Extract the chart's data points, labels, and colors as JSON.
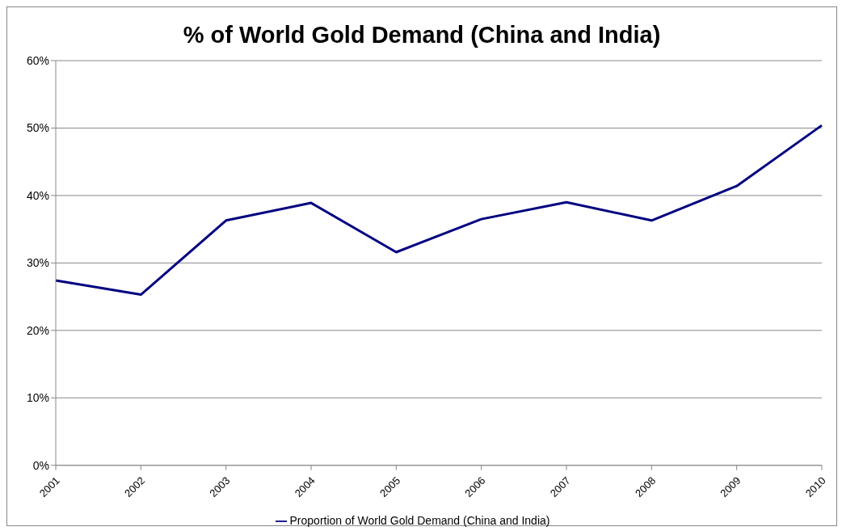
{
  "chart_data": {
    "type": "line",
    "title": "% of World Gold Demand (China and India)",
    "categories": [
      "2001",
      "2002",
      "2003",
      "2004",
      "2005",
      "2006",
      "2007",
      "2008",
      "2009",
      "2010"
    ],
    "series": [
      {
        "name": "Proportion of World Gold Demand (China and India)",
        "color": "#000080",
        "values": [
          27.4,
          25.3,
          36.3,
          38.9,
          31.6,
          36.5,
          39.0,
          36.3,
          41.4,
          50.4
        ]
      }
    ],
    "ylim": [
      0,
      60
    ],
    "yticks": [
      {
        "value": 0,
        "label": "0%"
      },
      {
        "value": 10,
        "label": "10%"
      },
      {
        "value": 20,
        "label": "20%"
      },
      {
        "value": 30,
        "label": "30%"
      },
      {
        "value": 40,
        "label": "40%"
      },
      {
        "value": 50,
        "label": "50%"
      },
      {
        "value": 60,
        "label": "60%"
      }
    ],
    "grid": "y",
    "legend": "bottom",
    "marker": "none",
    "line_style": "solid"
  }
}
